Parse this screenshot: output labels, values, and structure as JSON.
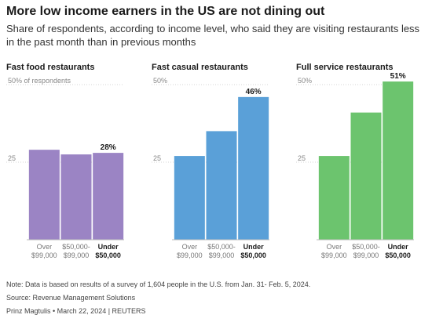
{
  "title": "More low income earners in the US are not dining out",
  "subtitle": "Share of respondents, according to income level, who said they are visiting restaurants less in the past month than in previous months",
  "colors": {
    "fast_food": "#9b84c4",
    "fast_casual": "#5aa0d8",
    "full_service": "#6cc46e"
  },
  "chart_data": [
    {
      "type": "bar",
      "title": "Fast food restaurants",
      "categories": [
        "Over\n$99,000",
        "$50,000-\n$99,000",
        "Under\n$50,000"
      ],
      "values": [
        29,
        27.5,
        28
      ],
      "data_labels": [
        "",
        "",
        "28%"
      ],
      "ylim": [
        0,
        50
      ],
      "yticks": [
        {
          "value": 50,
          "label": "50% of respondents"
        },
        {
          "value": 25,
          "label": "25"
        }
      ],
      "color": "#9b84c4"
    },
    {
      "type": "bar",
      "title": "Fast casual restaurants",
      "categories": [
        "Over\n$99,000",
        "$50,000-\n$99,000",
        "Under\n$50,000"
      ],
      "values": [
        27,
        35,
        46
      ],
      "data_labels": [
        "",
        "",
        "46%"
      ],
      "ylim": [
        0,
        50
      ],
      "yticks": [
        {
          "value": 50,
          "label": "50%"
        },
        {
          "value": 25,
          "label": "25"
        }
      ],
      "color": "#5aa0d8"
    },
    {
      "type": "bar",
      "title": "Full service restaurants",
      "categories": [
        "Over\n$99,000",
        "$50,000-\n$99,000",
        "Under\n$50,000"
      ],
      "values": [
        27,
        41,
        51
      ],
      "data_labels": [
        "",
        "",
        "51%"
      ],
      "ylim": [
        0,
        50
      ],
      "yticks": [
        {
          "value": 50,
          "label": "50%"
        },
        {
          "value": 25,
          "label": "25"
        }
      ],
      "color": "#6cc46e"
    }
  ],
  "footer": {
    "note": "Note: Data is based on results of a survey of 1,604 people in the U.S. from Jan. 31- Feb. 5, 2024.",
    "source": "Source: Revenue Management Solutions",
    "credit": "Prinz Magtulis • March 22, 2024 | REUTERS"
  }
}
